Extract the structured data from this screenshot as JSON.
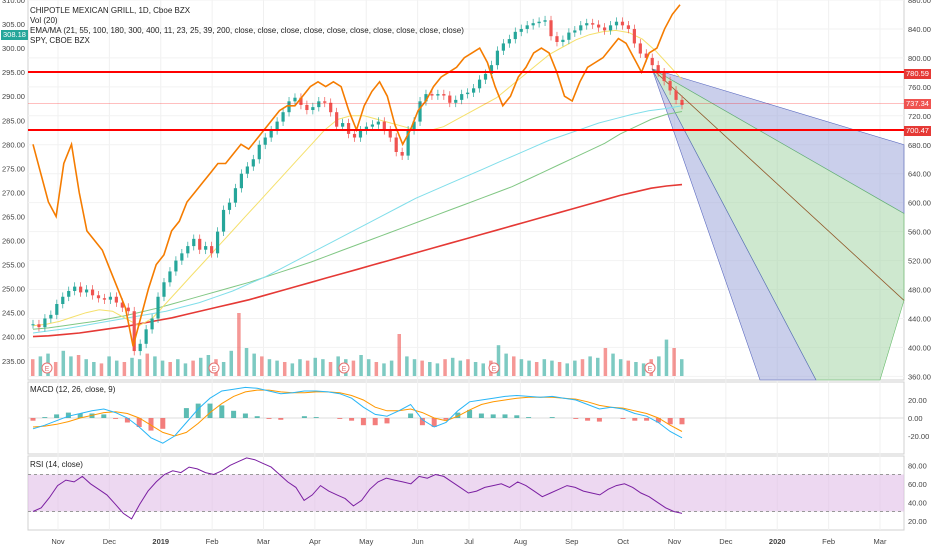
{
  "legend": {
    "symbol": "CHIPOTLE MEXICAN GRILL, 1D, Cboe BZX",
    "vol": "Vol (20)",
    "ema": "EMA/MA (21, 55, 100, 180, 300, 400, 11, 23, 25, 39, 200, close, close, close, close, close, close, close, close, close, close)",
    "spy": "SPY, CBOE BZX"
  },
  "macd_title": "MACD (12, 26, close, 9)",
  "rsi_title": "RSI (14, close)",
  "colors": {
    "up": "#26a69a",
    "down": "#ef5350",
    "spy": "#f57c00",
    "ema_fast": "#f5e06b",
    "ema_mid": "#80deea",
    "ema_slow": "#81c784",
    "ma_long": "#e53935",
    "hline": "#ff0000",
    "fan_blue": "#9fa8da",
    "fan_green": "#a5d6a7",
    "rsi_band": "#e1bee7"
  },
  "price_tags": {
    "left": "308.18",
    "r1": "780.59",
    "r2": "737.34",
    "r3": "700.47"
  },
  "earnings_marker": "E",
  "chart_data": [
    {
      "type": "line",
      "title": "CHIPOTLE MEXICAN GRILL, 1D, Cboe BZX",
      "x_ticks": [
        "Nov",
        "Dec",
        "2019",
        "Feb",
        "Mar",
        "Apr",
        "May",
        "Jun",
        "Jul",
        "Aug",
        "Sep",
        "Oct",
        "Nov",
        "Dec",
        "2020",
        "Feb",
        "Mar"
      ],
      "right_axis": {
        "ticks": [
          360,
          400,
          440,
          480,
          520,
          560,
          600,
          640,
          680,
          720,
          760,
          800,
          840,
          880
        ],
        "ylim": [
          355,
          880
        ]
      },
      "left_axis": {
        "ticks": [
          235,
          240,
          245,
          250,
          255,
          260,
          265,
          270,
          275,
          280,
          285,
          290,
          295,
          300,
          305,
          310
        ],
        "ylim": [
          231,
          310
        ]
      },
      "horizontal_lines": [
        780.59,
        737.34,
        700.47
      ],
      "series": [
        {
          "name": "CHIPOTLE MEXICAN GRILL",
          "axis": "right",
          "values": [
            432,
            428,
            440,
            445,
            460,
            470,
            478,
            484,
            476,
            480,
            472,
            468,
            466,
            470,
            462,
            455,
            450,
            395,
            405,
            425,
            440,
            470,
            490,
            505,
            520,
            530,
            540,
            550,
            535,
            540,
            530,
            560,
            590,
            600,
            620,
            640,
            650,
            660,
            680,
            690,
            700,
            712,
            725,
            740,
            745,
            735,
            728,
            732,
            740,
            738,
            725,
            705,
            710,
            695,
            690,
            700,
            705,
            708,
            712,
            700,
            690,
            670,
            665,
            700,
            712,
            740,
            750,
            748,
            750,
            748,
            738,
            742,
            750,
            752,
            758,
            770,
            778,
            790,
            810,
            820,
            826,
            836,
            840,
            845,
            848,
            850,
            852,
            830,
            822,
            825,
            835,
            838,
            845,
            848,
            846,
            842,
            838,
            845,
            850,
            845,
            840,
            820,
            806,
            800,
            790,
            780,
            768,
            755,
            742,
            735
          ]
        },
        {
          "name": "SPY",
          "axis": "left",
          "values": [
            280,
            274,
            268,
            265,
            276,
            280,
            270,
            262,
            260,
            258,
            254,
            250,
            246,
            238,
            244,
            250,
            255,
            257,
            262,
            264,
            268,
            270,
            272,
            274,
            276,
            276,
            278,
            280,
            279,
            281,
            283,
            285,
            287,
            288,
            288,
            290,
            292,
            293,
            292,
            293,
            292,
            287,
            283,
            288,
            291,
            293,
            290,
            284,
            280,
            283,
            287,
            289,
            292,
            294,
            295,
            296,
            298,
            299,
            300,
            297,
            292,
            288,
            290,
            294,
            296,
            299,
            300,
            299,
            295,
            290,
            289,
            293,
            296,
            297,
            298,
            300,
            302,
            301,
            298,
            295,
            299,
            300,
            304,
            307,
            309
          ]
        },
        {
          "name": "EMA fast",
          "axis": "right",
          "values": [
            430,
            432,
            436,
            442,
            448,
            452,
            450,
            440,
            430,
            440,
            460,
            480,
            500,
            520,
            540,
            560,
            580,
            600,
            620,
            640,
            660,
            680,
            700,
            715,
            720,
            720,
            715,
            710,
            705,
            700,
            700,
            705,
            715,
            725,
            735,
            745,
            760,
            775,
            790,
            805,
            815,
            825,
            832,
            836,
            838,
            835,
            826,
            810,
            790,
            770
          ]
        },
        {
          "name": "EMA mid",
          "axis": "right",
          "values": [
            420,
            423,
            426,
            430,
            434,
            438,
            442,
            446,
            450,
            456,
            462,
            470,
            478,
            488,
            498,
            510,
            522,
            534,
            546,
            558,
            570,
            582,
            594,
            606,
            616,
            626,
            636,
            646,
            656,
            666,
            676,
            686,
            694,
            702,
            710,
            716,
            722,
            727,
            730,
            734
          ]
        },
        {
          "name": "EMA slow",
          "axis": "right",
          "values": [
            425,
            427,
            430,
            433,
            436,
            440,
            444,
            449,
            454,
            460,
            466,
            472,
            478,
            484,
            490,
            497,
            504,
            511,
            518,
            526,
            534,
            542,
            550,
            558,
            566,
            574,
            582,
            590,
            598,
            606,
            614,
            622,
            632,
            642,
            652,
            662,
            672,
            682,
            695,
            705,
            715,
            722,
            726
          ]
        },
        {
          "name": "MA 200",
          "axis": "right",
          "values": [
            415,
            416,
            418,
            420,
            423,
            426,
            429,
            433,
            437,
            441,
            446,
            451,
            456,
            461,
            466,
            472,
            478,
            484,
            490,
            496,
            502,
            508,
            514,
            520,
            526,
            532,
            538,
            544,
            550,
            556,
            562,
            568,
            574,
            580,
            586,
            592,
            598,
            604,
            610,
            615,
            620,
            623,
            625
          ]
        }
      ],
      "fan": {
        "anchor": 785,
        "targets_at_end": [
          680,
          585,
          465,
          360,
          360
        ]
      }
    },
    {
      "type": "bar",
      "title": "Vol (20)",
      "earnings_markers": 6,
      "values": [
        12,
        14,
        16,
        10,
        18,
        14,
        15,
        12,
        10,
        9,
        14,
        11,
        10,
        13,
        12,
        16,
        14,
        11,
        10,
        12,
        9,
        11,
        13,
        15,
        12,
        10,
        18,
        45,
        20,
        16,
        14,
        12,
        11,
        10,
        9,
        12,
        11,
        13,
        12,
        10,
        14,
        12,
        11,
        15,
        12,
        10,
        9,
        11,
        30,
        14,
        12,
        11,
        10,
        9,
        12,
        13,
        11,
        12,
        10,
        9,
        11,
        22,
        16,
        14,
        12,
        11,
        10,
        12,
        11,
        10,
        9,
        11,
        12,
        14,
        13,
        20,
        16,
        12,
        11,
        10,
        9,
        12,
        14,
        26,
        20,
        12
      ]
    },
    {
      "type": "line",
      "title": "MACD (12, 26, close, 9)",
      "ylim": [
        -40,
        40
      ],
      "y_ticks": [
        -20,
        0,
        20
      ],
      "series": [
        {
          "name": "MACD",
          "values": [
            -12,
            -8,
            -3,
            2,
            5,
            8,
            10,
            6,
            0,
            -10,
            -22,
            -28,
            -20,
            -5,
            10,
            22,
            30,
            32,
            34,
            33,
            30,
            27,
            28,
            30,
            30,
            29,
            27,
            22,
            12,
            4,
            2,
            8,
            15,
            -2,
            -10,
            -5,
            8,
            18,
            20,
            22,
            24,
            25,
            24,
            23,
            24,
            22,
            20,
            15,
            10,
            12,
            10,
            5,
            2,
            -5,
            -15,
            -22
          ]
        },
        {
          "name": "Signal",
          "values": [
            -10,
            -9,
            -7,
            -4,
            0,
            3,
            6,
            7,
            5,
            0,
            -8,
            -16,
            -20,
            -16,
            -6,
            6,
            16,
            24,
            29,
            31,
            31,
            29,
            28,
            28,
            29,
            29,
            28,
            25,
            20,
            12,
            8,
            8,
            10,
            6,
            0,
            -3,
            2,
            9,
            15,
            18,
            20,
            22,
            23,
            23,
            23,
            22,
            21,
            18,
            14,
            12,
            11,
            8,
            5,
            0,
            -8,
            -15
          ]
        },
        {
          "name": "Histogram",
          "values": [
            -3,
            1,
            4,
            6,
            5,
            5,
            4,
            -1,
            -5,
            -10,
            -14,
            -12,
            0,
            11,
            16,
            16,
            14,
            8,
            5,
            2,
            -1,
            -2,
            0,
            2,
            1,
            0,
            -1,
            -3,
            -8,
            -8,
            -6,
            0,
            5,
            -8,
            -10,
            -2,
            6,
            9,
            5,
            4,
            4,
            3,
            1,
            0,
            1,
            0,
            -1,
            -3,
            -4,
            0,
            -1,
            -3,
            -3,
            -5,
            -7,
            -7
          ]
        }
      ]
    },
    {
      "type": "line",
      "title": "RSI (14, close)",
      "ylim": [
        10,
        90
      ],
      "y_ticks": [
        20,
        40,
        60,
        80
      ],
      "bands": [
        30,
        70
      ],
      "series": [
        {
          "name": "RSI",
          "values": [
            30,
            34,
            45,
            58,
            64,
            62,
            68,
            60,
            54,
            48,
            38,
            28,
            22,
            38,
            52,
            62,
            70,
            74,
            72,
            78,
            76,
            72,
            70,
            74,
            80,
            84,
            88,
            86,
            82,
            78,
            70,
            62,
            56,
            42,
            48,
            58,
            52,
            48,
            44,
            36,
            42,
            54,
            62,
            66,
            64,
            62,
            60,
            68,
            66,
            70,
            68,
            62,
            56,
            50,
            52,
            56,
            58,
            60,
            56,
            62,
            58,
            52,
            46,
            50,
            54,
            58,
            56,
            52,
            50,
            48,
            54,
            58,
            60,
            56,
            50,
            46,
            40,
            34,
            30,
            28
          ]
        }
      ]
    }
  ]
}
